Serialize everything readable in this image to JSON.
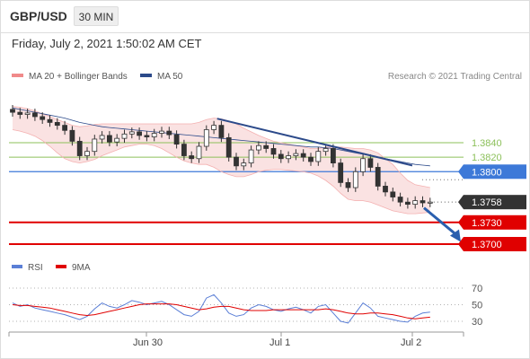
{
  "header": {
    "symbol": "GBP/USD",
    "timeframe": "30 MIN",
    "datetime": "Friday, July 2, 2021 1:50:02 AM CET"
  },
  "legend": {
    "bb_label": "MA 20 + Bollinger Bands",
    "ma50_label": "MA 50",
    "credit": "Research © 2021 Trading Central",
    "rsi_label": "RSI",
    "rsi_ma_label": "9MA"
  },
  "colors": {
    "bollinger": "#f08a8a",
    "ma50": "#2c4a8a",
    "green_level": "#8cc05a",
    "blue_level": "#3d79d8",
    "red_level": "#e00000",
    "current_price": "#333333",
    "arrow": "#2a5fae",
    "rsi": "#5b7fd6",
    "rsi_ma": "#e00000"
  },
  "levels": [
    {
      "value": "1.3840",
      "kind": "green"
    },
    {
      "value": "1.3820",
      "kind": "green"
    },
    {
      "value": "1.3800",
      "kind": "blue"
    },
    {
      "value": "1.3758",
      "kind": "current"
    },
    {
      "value": "1.3730",
      "kind": "red"
    },
    {
      "value": "1.3700",
      "kind": "red"
    }
  ],
  "xaxis": {
    "labels": [
      "Jun 30",
      "Jul 1",
      "Jul 2"
    ]
  },
  "rsi_axis": {
    "labels": [
      "70",
      "50",
      "30"
    ]
  },
  "chart_data": {
    "type": "candlestick",
    "title": "GBP/USD",
    "timeframe": "30 MIN",
    "close_series": [
      1.3882,
      1.3879,
      1.3881,
      1.3876,
      1.3872,
      1.3868,
      1.3864,
      1.3857,
      1.3842,
      1.3822,
      1.3828,
      1.3845,
      1.385,
      1.3841,
      1.3846,
      1.3852,
      1.3855,
      1.385,
      1.3848,
      1.3853,
      1.3856,
      1.3851,
      1.3838,
      1.3822,
      1.3818,
      1.3835,
      1.3858,
      1.3864,
      1.3847,
      1.382,
      1.3808,
      1.3812,
      1.383,
      1.3836,
      1.3832,
      1.3824,
      1.3818,
      1.3822,
      1.3825,
      1.382,
      1.3814,
      1.3828,
      1.3832,
      1.3812,
      1.3785,
      1.3778,
      1.38,
      1.3818,
      1.3806,
      1.378,
      1.3772,
      1.3765,
      1.3758,
      1.3755,
      1.376,
      1.3757,
      1.3758
    ],
    "bollinger_upper": [
      1.389,
      1.3889,
      1.3887,
      1.3884,
      1.388,
      1.3876,
      1.3872,
      1.3868,
      1.3864,
      1.3862,
      1.3863,
      1.3865,
      1.3866,
      1.3866,
      1.3866,
      1.3866,
      1.3866,
      1.3866,
      1.3866,
      1.3866,
      1.3866,
      1.3866,
      1.3866,
      1.3866,
      1.3866,
      1.3868,
      1.3872,
      1.3874,
      1.3873,
      1.387,
      1.3866,
      1.386,
      1.3855,
      1.385,
      1.3846,
      1.3842,
      1.384,
      1.3838,
      1.3836,
      1.3834,
      1.3832,
      1.3832,
      1.3834,
      1.3834,
      1.3834,
      1.3833,
      1.3832,
      1.3832,
      1.383,
      1.3826,
      1.3818,
      1.381,
      1.3798,
      1.3788,
      1.3782,
      1.378,
      1.3778
    ],
    "bollinger_lower": [
      1.3858,
      1.3856,
      1.3853,
      1.3849,
      1.3843,
      1.3835,
      1.3826,
      1.3818,
      1.3814,
      1.3812,
      1.3814,
      1.3817,
      1.3822,
      1.3826,
      1.383,
      1.3834,
      1.3836,
      1.3838,
      1.3838,
      1.3836,
      1.3832,
      1.3826,
      1.382,
      1.3815,
      1.3812,
      1.381,
      1.381,
      1.3806,
      1.38,
      1.3796,
      1.3793,
      1.3793,
      1.3796,
      1.38,
      1.3802,
      1.3803,
      1.3803,
      1.3802,
      1.3801,
      1.38,
      1.3798,
      1.3794,
      1.3788,
      1.378,
      1.377,
      1.3762,
      1.376,
      1.376,
      1.3758,
      1.3754,
      1.375,
      1.3746,
      1.3744,
      1.3742,
      1.3742,
      1.3743,
      1.3744
    ],
    "ma50": [
      1.3888,
      1.3886,
      1.3884,
      1.3882,
      1.388,
      1.3878,
      1.3876,
      1.3874,
      1.3871,
      1.3868,
      1.3866,
      1.3864,
      1.3862,
      1.3861,
      1.386,
      1.3859,
      1.3858,
      1.3857,
      1.3856,
      1.3855,
      1.3854,
      1.3853,
      1.3852,
      1.3851,
      1.385,
      1.3849,
      1.3848,
      1.3847,
      1.3846,
      1.3845,
      1.3844,
      1.3843,
      1.3842,
      1.3841,
      1.384,
      1.3839,
      1.3838,
      1.3837,
      1.3836,
      1.3835,
      1.3834,
      1.3834,
      1.3833,
      1.3832,
      1.383,
      1.3828,
      1.3826,
      1.3824,
      1.3822,
      1.382,
      1.3818,
      1.3816,
      1.3814,
      1.3812,
      1.381,
      1.3809,
      1.3808
    ],
    "trendline": {
      "from": {
        "i": 19,
        "price": 1.3872
      },
      "to": {
        "i": 50,
        "price": 1.3806
      }
    },
    "forecast_arrow": {
      "from": {
        "i": 56,
        "price": 1.3755
      },
      "to": {
        "i": 63,
        "price": 1.3703
      }
    },
    "levels": [
      1.384,
      1.382,
      1.38,
      1.3758,
      1.373,
      1.37
    ],
    "rsi": [
      52,
      48,
      50,
      46,
      44,
      42,
      40,
      38,
      35,
      32,
      36,
      45,
      52,
      48,
      46,
      50,
      55,
      53,
      50,
      52,
      54,
      50,
      44,
      38,
      36,
      42,
      58,
      62,
      52,
      40,
      36,
      38,
      46,
      50,
      48,
      44,
      42,
      45,
      47,
      44,
      40,
      48,
      50,
      40,
      30,
      28,
      40,
      52,
      46,
      36,
      34,
      32,
      30,
      29,
      36,
      40,
      41
    ],
    "rsi_ma": [
      50,
      49,
      49,
      48,
      47,
      46,
      44,
      42,
      40,
      38,
      37,
      38,
      40,
      42,
      44,
      46,
      48,
      50,
      51,
      51,
      51,
      51,
      50,
      48,
      46,
      44,
      45,
      47,
      48,
      48,
      46,
      44,
      43,
      43,
      43,
      44,
      44,
      44,
      44,
      44,
      44,
      44,
      45,
      44,
      42,
      40,
      39,
      39,
      40,
      40,
      39,
      38,
      36,
      34,
      33,
      34,
      35
    ],
    "rsi_levels": [
      70,
      50,
      30
    ],
    "x_labels": [
      "Jun 30",
      "Jul 1",
      "Jul 2"
    ]
  }
}
